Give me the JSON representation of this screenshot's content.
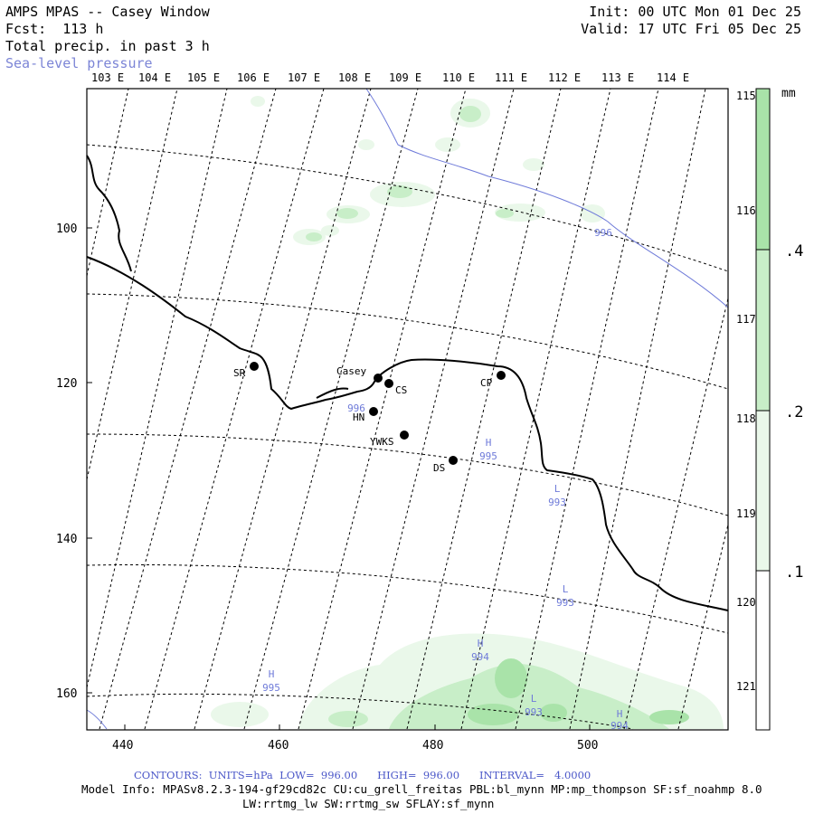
{
  "header": {
    "title": "AMPS MPAS -- Casey Window",
    "forecast": "Fcst:  113 h",
    "field": "Total precip. in past 3 h",
    "overlay": "Sea-level pressure",
    "init": "Init: 00 UTC Mon 01 Dec 25",
    "valid": "Valid: 17 UTC Fri 05 Dec 25"
  },
  "map": {
    "lon_labels_top": [
      "103 E",
      "104 E",
      "105 E",
      "106 E",
      "107 E",
      "108 E",
      "109 E",
      "110 E",
      "111 E",
      "112 E",
      "113 E",
      "114 E"
    ],
    "lon_labels_right": [
      "115 E",
      "116 E",
      "117 E",
      "118 E",
      "119 E",
      "120 E",
      "121 E"
    ],
    "x_ticks": [
      "440",
      "460",
      "480",
      "500"
    ],
    "y_ticks": [
      "100",
      "120",
      "140",
      "160"
    ],
    "stations": [
      {
        "name": "SR"
      },
      {
        "name": "Casey"
      },
      {
        "name": "CS"
      },
      {
        "name": "HN"
      },
      {
        "name": "CP"
      },
      {
        "name": "YWKS"
      },
      {
        "name": "DS"
      }
    ],
    "pressure_labels": [
      {
        "type": "",
        "value": "996"
      },
      {
        "type": "",
        "value": "996"
      },
      {
        "type": "H",
        "value": "995"
      },
      {
        "type": "L",
        "value": "993"
      },
      {
        "type": "L",
        "value": "993"
      },
      {
        "type": "H",
        "value": "994"
      },
      {
        "type": "H",
        "value": "995"
      },
      {
        "type": "L",
        "value": "993"
      },
      {
        "type": "H",
        "value": "994"
      }
    ],
    "colors": {
      "precip_light": "#eaf8ea",
      "precip_mid": "#c8eec8",
      "precip_dark": "#a9e3a9",
      "contour": "#6f7bd9",
      "coast": "#000000",
      "graticule": "#000000"
    }
  },
  "legend": {
    "unit": "mm",
    "ticks": [
      ".4",
      ".2",
      ".1"
    ]
  },
  "footer": {
    "contours": "CONTOURS:  UNITS=hPa  LOW=  996.00      HIGH=  996.00      INTERVAL=   4.0000",
    "model_info": "Model Info: MPASv8.2.3-194-gf29cd82c CU:cu_grell_freitas PBL:bl_mynn MP:mp_thompson SF:sf_noahmp 8.0",
    "model_info2": "LW:rrtmg_lw SW:rrtmg_sw SFLAY:sf_mynn"
  }
}
